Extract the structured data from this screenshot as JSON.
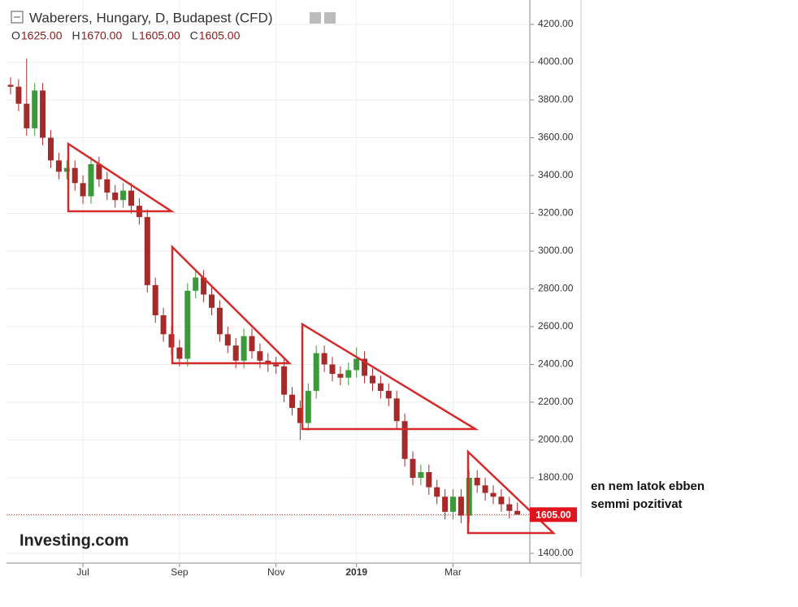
{
  "chart_data": {
    "type": "candlestick",
    "title": "Waberers, Hungary, D, Budapest (CFD)",
    "ohlc": [
      {
        "key": "O",
        "value": 1625,
        "label": "1625.00"
      },
      {
        "key": "H",
        "value": 1670,
        "label": "1670.00"
      },
      {
        "key": "L",
        "value": 1605,
        "label": "1605.00"
      },
      {
        "key": "C",
        "value": 1605,
        "label": "1605.00"
      }
    ],
    "last_price": {
      "value": 1605,
      "label": "1605.00"
    },
    "logo": "Investing.com",
    "annotation": [
      "en nem latok ebben",
      "semmi pozitivat"
    ],
    "up_color": "#3a9a3a",
    "down_color": "#a52a2a",
    "categories": [
      null,
      null,
      null,
      null,
      null,
      null,
      null,
      null,
      null,
      "Jul",
      null,
      null,
      null,
      null,
      null,
      null,
      null,
      null,
      null,
      null,
      null,
      "Sep",
      null,
      null,
      null,
      null,
      null,
      null,
      null,
      null,
      null,
      null,
      null,
      "Nov",
      null,
      null,
      null,
      null,
      null,
      null,
      null,
      null,
      null,
      "2019",
      null,
      null,
      null,
      null,
      null,
      null,
      null,
      null,
      null,
      null,
      null,
      "Mar",
      null,
      null,
      null,
      null,
      null,
      null,
      null,
      null
    ],
    "open": [
      3880,
      3870,
      3780,
      3650,
      3850,
      3600,
      3480,
      3420,
      3440,
      3360,
      3290,
      3460,
      3380,
      3310,
      3270,
      3320,
      3240,
      3180,
      2820,
      2660,
      2560,
      2490,
      2430,
      2790,
      2860,
      2770,
      2700,
      2560,
      2500,
      2420,
      2550,
      2470,
      2420,
      2400,
      2390,
      2240,
      2170,
      2090,
      2260,
      2460,
      2400,
      2350,
      2330,
      2370,
      2430,
      2340,
      2300,
      2260,
      2220,
      2100,
      1900,
      1800,
      1830,
      1750,
      1700,
      1620,
      1700,
      1600,
      1800,
      1760,
      1720,
      1700,
      1660,
      1625
    ],
    "high": [
      3920,
      3910,
      4020,
      3890,
      3890,
      3640,
      3520,
      3480,
      3480,
      3400,
      3500,
      3500,
      3420,
      3350,
      3360,
      3360,
      3280,
      3220,
      2860,
      2700,
      2600,
      2530,
      2830,
      2900,
      2900,
      2810,
      2740,
      2600,
      2540,
      2590,
      2590,
      2510,
      2460,
      2440,
      2430,
      2280,
      2210,
      2300,
      2500,
      2500,
      2440,
      2390,
      2410,
      2490,
      2470,
      2380,
      2340,
      2300,
      2260,
      2140,
      1940,
      1870,
      1870,
      1790,
      1740,
      1740,
      1740,
      1840,
      1840,
      1800,
      1760,
      1740,
      1700,
      1670
    ],
    "low": [
      3830,
      3740,
      3610,
      3610,
      3560,
      3440,
      3380,
      3380,
      3320,
      3250,
      3250,
      3340,
      3270,
      3230,
      3230,
      3200,
      3140,
      2780,
      2620,
      2520,
      2450,
      2390,
      2390,
      2750,
      2730,
      2660,
      2520,
      2460,
      2380,
      2380,
      2430,
      2380,
      2360,
      2350,
      2200,
      2130,
      2000,
      2050,
      2220,
      2360,
      2310,
      2290,
      2290,
      2330,
      2300,
      2260,
      2220,
      2180,
      2060,
      1860,
      1760,
      1760,
      1710,
      1660,
      1580,
      1580,
      1560,
      1560,
      1720,
      1680,
      1660,
      1620,
      1585,
      1605
    ],
    "close": [
      3870,
      3780,
      3650,
      3850,
      3600,
      3480,
      3420,
      3440,
      3360,
      3290,
      3460,
      3380,
      3310,
      3270,
      3320,
      3240,
      3180,
      2820,
      2660,
      2560,
      2490,
      2430,
      2790,
      2860,
      2770,
      2700,
      2560,
      2500,
      2420,
      2550,
      2470,
      2420,
      2400,
      2390,
      2240,
      2170,
      2090,
      2260,
      2460,
      2400,
      2350,
      2330,
      2370,
      2430,
      2340,
      2300,
      2260,
      2220,
      2100,
      1900,
      1800,
      1830,
      1750,
      1700,
      1620,
      1700,
      1600,
      1800,
      1760,
      1720,
      1700,
      1660,
      1625,
      1605
    ],
    "ylim": [
      1400,
      4200
    ],
    "yticks": [
      {
        "value": 1400,
        "label": "1400.00"
      },
      {
        "value": 1600,
        "label": "1600.00"
      },
      {
        "value": 1800,
        "label": "1800.00"
      },
      {
        "value": 2000,
        "label": "2000.00"
      },
      {
        "value": 2200,
        "label": "2200.00"
      },
      {
        "value": 2400,
        "label": "2400.00"
      },
      {
        "value": 2600,
        "label": "2600.00"
      },
      {
        "value": 2800,
        "label": "2800.00"
      },
      {
        "value": 3000,
        "label": "3000.00"
      },
      {
        "value": 3200,
        "label": "3200.00"
      },
      {
        "value": 3400,
        "label": "3400.00"
      },
      {
        "value": 3600,
        "label": "3600.00"
      },
      {
        "value": 3800,
        "label": "3800.00"
      },
      {
        "value": 4000,
        "label": "4000.00"
      },
      {
        "value": 4200,
        "label": "4200.00"
      }
    ],
    "grid": true
  }
}
